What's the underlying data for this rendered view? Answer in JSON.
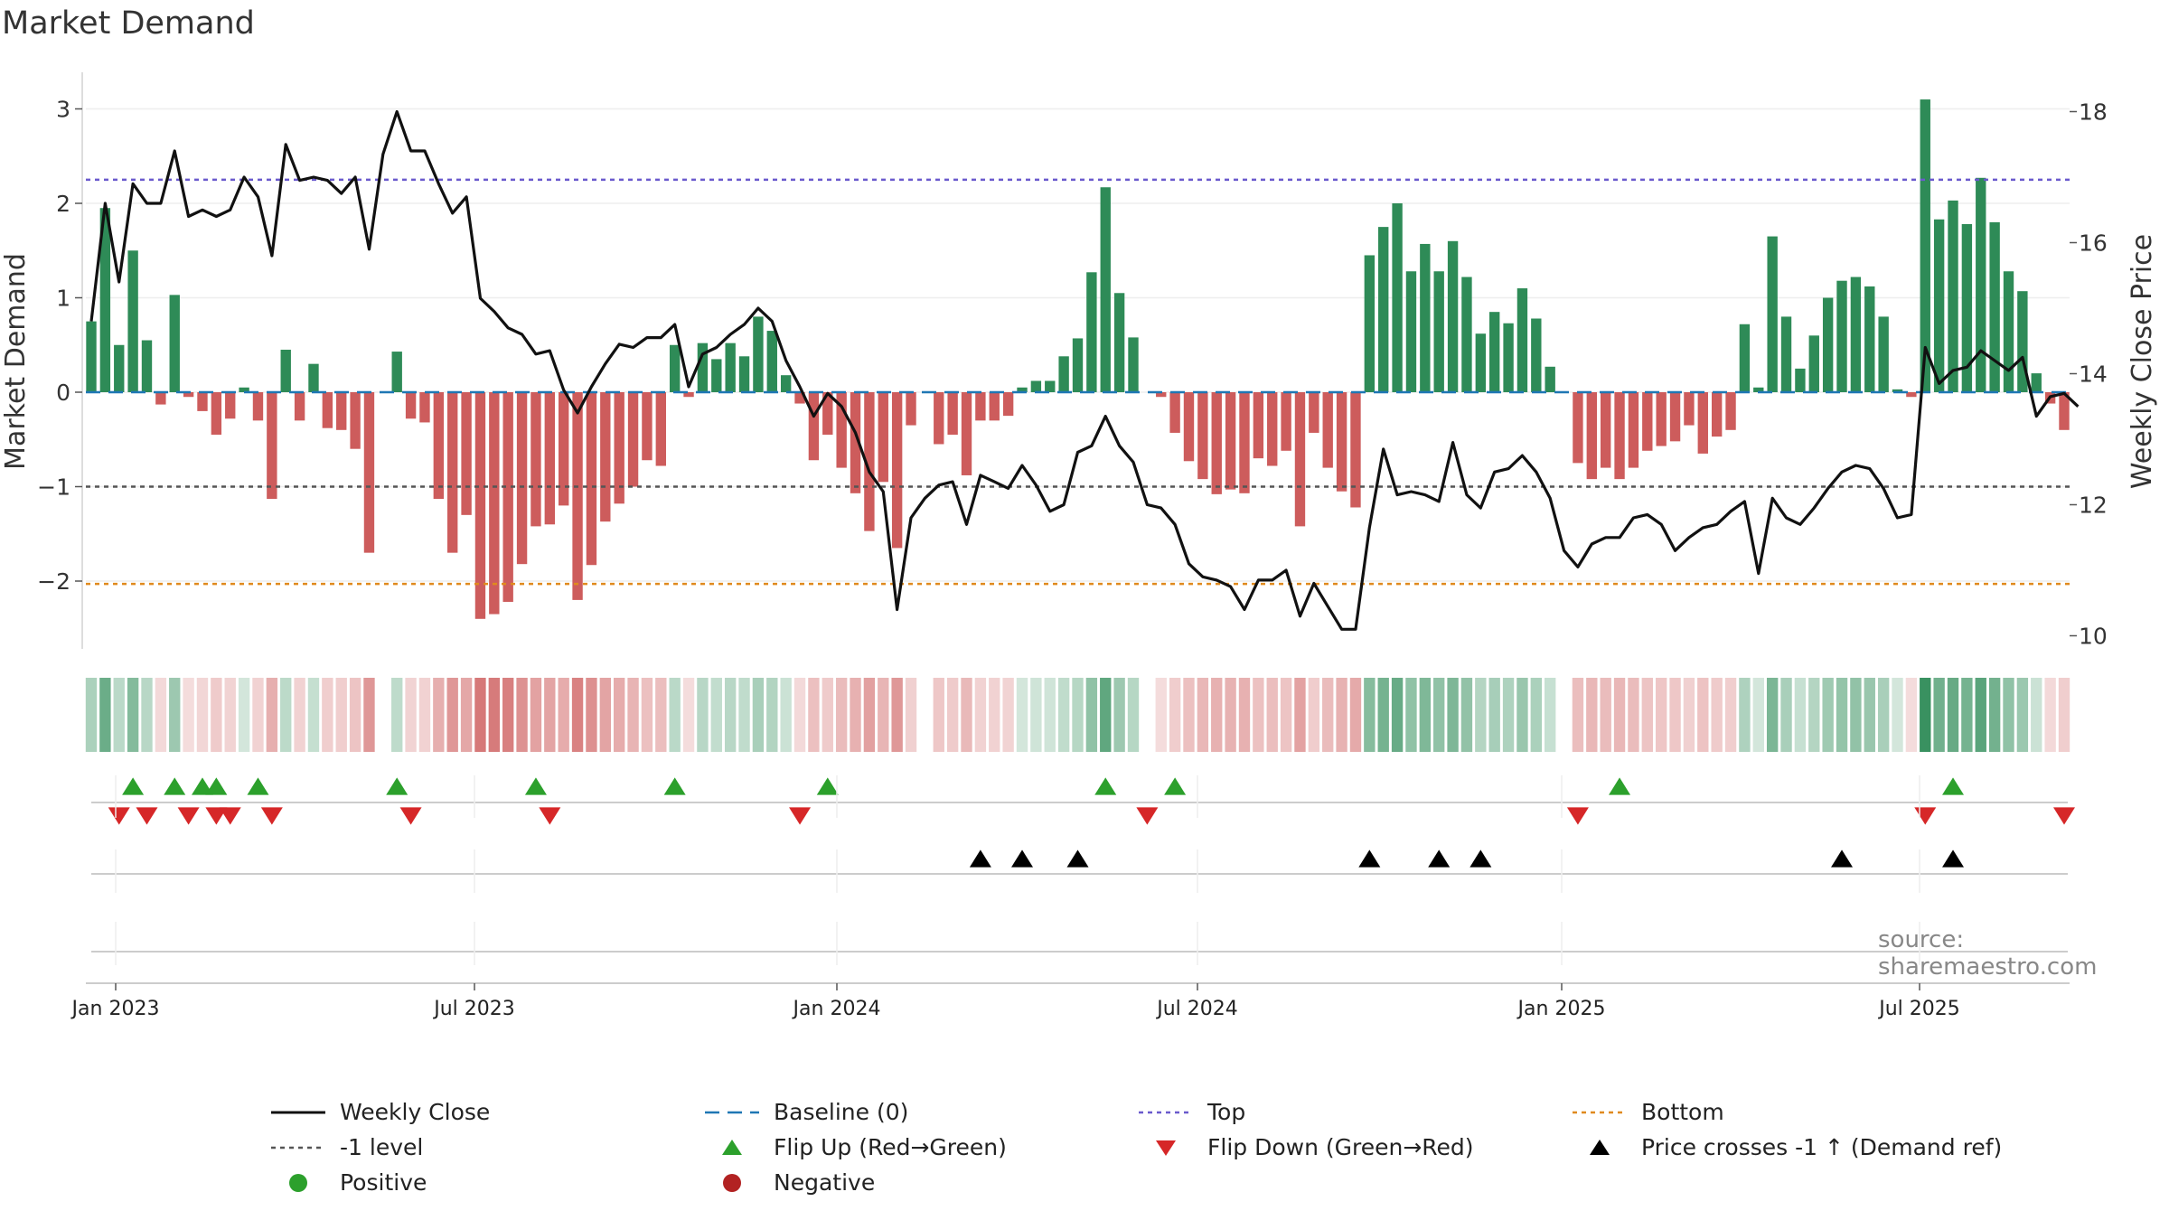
{
  "title": "Market Demand",
  "source": "source: sharemaestro.com",
  "colors": {
    "positive": "#2e8b57",
    "negative": "#cd5c5c",
    "close": "#111111",
    "top": "#6a5acd",
    "bottom": "#e08a1e",
    "minus1": "#555555",
    "baseline": "#1f77b4",
    "flip_up": "#2ca02c",
    "flip_down": "#d62728",
    "cross": "#000000"
  },
  "chart_data": {
    "type": "bar",
    "title": "Market Demand",
    "ylabel": "Market Demand",
    "y2label": "Weekly Close Price",
    "ylim": [
      -2.7,
      3.3
    ],
    "y2lim": [
      9.8,
      18.6
    ],
    "yticks": [
      -2,
      -1,
      0,
      1,
      2,
      3
    ],
    "ytick_labels": [
      "−2",
      "−1",
      "0",
      "1",
      "2",
      "3"
    ],
    "y2ticks": [
      10,
      12,
      14,
      16,
      18
    ],
    "y2tick_labels": [
      "10",
      "12",
      "14",
      "16",
      "18"
    ],
    "xticks": [
      "Jan 2023",
      "Jul 2023",
      "Jan 2024",
      "Jul 2024",
      "Jan 2025",
      "Jul 2025"
    ],
    "levels": {
      "top": 2.25,
      "bottom": -2.03,
      "minus1": -1.0,
      "baseline": 0
    },
    "demand": [
      0.75,
      1.95,
      0.5,
      1.5,
      0.55,
      -0.13,
      1.03,
      -0.05,
      -0.2,
      -0.45,
      -0.28,
      0.05,
      -0.3,
      -1.13,
      0.45,
      -0.3,
      0.3,
      -0.38,
      -0.4,
      -0.6,
      -1.7,
      0,
      0.43,
      -0.28,
      -0.32,
      -1.13,
      -1.7,
      -1.3,
      -2.4,
      -2.35,
      -2.22,
      -1.82,
      -1.42,
      -1.4,
      -1.2,
      -2.2,
      -1.83,
      -1.37,
      -1.18,
      -1.0,
      -0.72,
      -0.78,
      0.5,
      -0.05,
      0.52,
      0.35,
      0.52,
      0.38,
      0.8,
      0.65,
      0.18,
      -0.12,
      -0.72,
      -0.45,
      -0.8,
      -1.07,
      -1.47,
      -0.95,
      -1.65,
      -0.35,
      0,
      -0.55,
      -0.45,
      -0.88,
      -0.3,
      -0.3,
      -0.25,
      0.05,
      0.12,
      0.12,
      0.38,
      0.57,
      1.27,
      2.17,
      1.05,
      0.58,
      0,
      -0.05,
      -0.43,
      -0.73,
      -0.92,
      -1.08,
      -1.03,
      -1.07,
      -0.7,
      -0.78,
      -0.62,
      -1.42,
      -0.43,
      -0.8,
      -1.05,
      -1.22,
      1.45,
      1.75,
      2.0,
      1.28,
      1.57,
      1.28,
      1.6,
      1.22,
      0.62,
      0.85,
      0.73,
      1.1,
      0.78,
      0.27,
      0,
      -0.75,
      -0.92,
      -0.8,
      -0.92,
      -0.8,
      -0.62,
      -0.57,
      -0.52,
      -0.35,
      -0.65,
      -0.47,
      -0.4,
      0.72,
      0.05,
      1.65,
      0.8,
      0.25,
      0.6,
      1.0,
      1.18,
      1.22,
      1.12,
      0.8,
      0.03,
      -0.05,
      3.1,
      1.83,
      2.03,
      1.78,
      2.27,
      1.8,
      1.28,
      1.07,
      0.2,
      -0.12,
      -0.4
    ],
    "close": [
      14.8,
      16.6,
      15.4,
      16.9,
      16.6,
      16.6,
      17.4,
      16.4,
      16.5,
      16.4,
      16.5,
      17.0,
      16.7,
      15.8,
      17.5,
      16.95,
      17.0,
      16.95,
      16.75,
      17.0,
      15.9,
      17.35,
      18.0,
      17.4,
      17.4,
      16.9,
      16.45,
      16.7,
      15.15,
      14.95,
      14.7,
      14.6,
      14.3,
      14.35,
      13.75,
      13.4,
      13.8,
      14.15,
      14.45,
      14.4,
      14.55,
      14.55,
      14.75,
      13.8,
      14.3,
      14.4,
      14.6,
      14.75,
      15.0,
      14.8,
      14.2,
      13.8,
      13.35,
      13.7,
      13.5,
      13.1,
      12.5,
      12.2,
      10.4,
      11.8,
      12.1,
      12.3,
      12.35,
      11.7,
      12.45,
      12.35,
      12.25,
      12.6,
      12.3,
      11.9,
      12.0,
      12.8,
      12.9,
      13.35,
      12.9,
      12.65,
      12.0,
      11.95,
      11.7,
      11.1,
      10.9,
      10.85,
      10.75,
      10.4,
      10.85,
      10.85,
      11.0,
      10.3,
      10.8,
      10.45,
      10.1,
      10.1,
      11.65,
      12.85,
      12.15,
      12.2,
      12.15,
      12.05,
      12.95,
      12.15,
      11.95,
      12.5,
      12.55,
      12.75,
      12.5,
      12.1,
      11.3,
      11.05,
      11.4,
      11.5,
      11.5,
      11.8,
      11.85,
      11.7,
      11.3,
      11.5,
      11.65,
      11.7,
      11.9,
      12.05,
      10.95,
      12.1,
      11.8,
      11.7,
      11.95,
      12.25,
      12.5,
      12.6,
      12.55,
      12.25,
      11.8,
      11.85,
      14.4,
      13.85,
      14.05,
      14.1,
      14.35,
      14.2,
      14.05,
      14.25,
      13.35,
      13.65,
      13.7,
      13.5
    ],
    "flip_up": [
      3,
      6,
      8,
      9,
      12,
      22,
      32,
      42,
      53,
      73,
      78,
      110,
      134
    ],
    "flip_down": [
      2,
      4,
      7,
      9,
      10,
      13,
      23,
      33,
      51,
      76,
      107,
      132,
      142
    ],
    "price_crosses": [
      64,
      67,
      71,
      92,
      97,
      100,
      126,
      134
    ],
    "legend": [
      {
        "label": "Weekly Close",
        "marker": "line"
      },
      {
        "label": "Baseline (0)",
        "marker": "dash"
      },
      {
        "label": "Top",
        "marker": "dotted-top"
      },
      {
        "label": "Bottom",
        "marker": "dotted-bottom"
      },
      {
        "label": "-1 level",
        "marker": "dotted-minus1"
      },
      {
        "label": "Flip Up (Red→Green)",
        "marker": "triangle-up"
      },
      {
        "label": "Flip Down (Green→Red)",
        "marker": "triangle-down"
      },
      {
        "label": "Price crosses -1 ↑ (Demand ref)",
        "marker": "triangle-cross"
      },
      {
        "label": "Positive",
        "marker": "circle-pos"
      },
      {
        "label": "Negative",
        "marker": "circle-neg"
      }
    ]
  }
}
